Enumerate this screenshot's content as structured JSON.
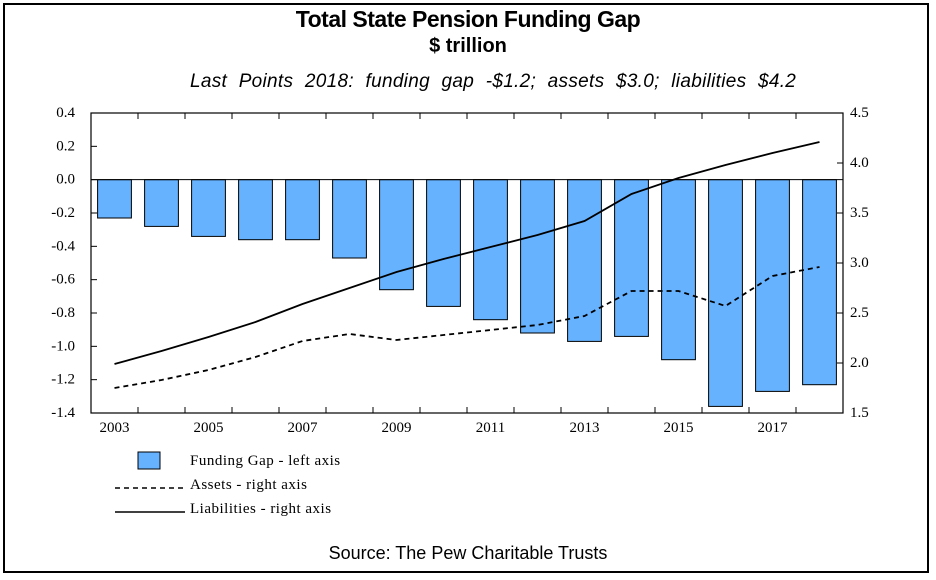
{
  "chart_data": {
    "type": "bar",
    "title": "Total State Pension Funding Gap",
    "subtitle": "$ trillion",
    "note": "Last Points 2018: funding gap -$1.2; assets $3.0; liabilities $4.2",
    "source": "Source: The Pew Charitable Trusts",
    "x": [
      2003,
      2004,
      2005,
      2006,
      2007,
      2008,
      2009,
      2010,
      2011,
      2012,
      2013,
      2014,
      2015,
      2016,
      2017,
      2018
    ],
    "x_tick_labels": [
      "2003",
      "2005",
      "2007",
      "2009",
      "2011",
      "2013",
      "2015",
      "2017"
    ],
    "left_axis": {
      "ylim": [
        -1.4,
        0.4
      ],
      "ticks": [
        "0.4",
        "0.2",
        "0.0",
        "-0.2",
        "-0.4",
        "-0.6",
        "-0.8",
        "-1.0",
        "-1.2",
        "-1.4"
      ]
    },
    "right_axis": {
      "ylim": [
        1.5,
        4.5
      ],
      "ticks": [
        "4.5",
        "4.0",
        "3.5",
        "3.0",
        "2.5",
        "2.0",
        "1.5"
      ]
    },
    "series": [
      {
        "name": "Funding Gap - left axis",
        "type": "bar",
        "axis": "left",
        "color": "#66b2ff",
        "values": [
          -0.23,
          -0.28,
          -0.34,
          -0.36,
          -0.36,
          -0.47,
          -0.66,
          -0.76,
          -0.84,
          -0.92,
          -0.97,
          -0.94,
          -1.08,
          -1.36,
          -1.27,
          -1.23
        ]
      },
      {
        "name": "Assets - right axis",
        "type": "line",
        "style": "dashed",
        "axis": "right",
        "color": "#000000",
        "values": [
          1.75,
          1.83,
          1.93,
          2.06,
          2.22,
          2.29,
          2.23,
          2.28,
          2.33,
          2.38,
          2.47,
          2.72,
          2.72,
          2.57,
          2.87,
          2.96
        ]
      },
      {
        "name": "Liabilities - right axis",
        "type": "line",
        "style": "solid",
        "axis": "right",
        "color": "#000000",
        "values": [
          1.99,
          2.12,
          2.26,
          2.41,
          2.59,
          2.75,
          2.91,
          3.04,
          3.16,
          3.28,
          3.42,
          3.69,
          3.85,
          3.98,
          4.1,
          4.21
        ]
      }
    ],
    "grid": false,
    "legend_position": "bottom-left"
  }
}
